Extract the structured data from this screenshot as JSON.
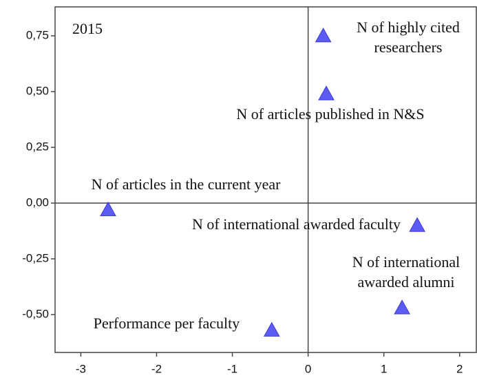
{
  "chart_data": {
    "type": "scatter",
    "title": "2015",
    "x": [
      0.2,
      0.24,
      -2.64,
      1.44,
      1.24,
      -0.48
    ],
    "values": [
      0.75,
      0.49,
      -0.03,
      -0.1,
      -0.47,
      -0.57
    ],
    "labels": [
      [
        "N of highly cited",
        "researchers"
      ],
      [
        "N of articles published in N&S"
      ],
      [
        "N of articles in the current year"
      ],
      [
        "N of international awarded faculty"
      ],
      [
        "N of international",
        "awarded alumni"
      ],
      [
        "Performance per faculty"
      ]
    ],
    "color": "#5c5cf2",
    "xlim": [
      -3.34,
      2.22
    ],
    "xticks": [
      -3,
      -2,
      -1,
      0,
      1,
      2
    ],
    "ylim": [
      -0.67,
      0.88
    ],
    "yticks": [
      {
        "value": 0.75,
        "label": "0,75"
      },
      {
        "value": 0.5,
        "label": "0,50"
      },
      {
        "value": 0.25,
        "label": "0,25"
      },
      {
        "value": 0,
        "label": "0,00"
      },
      {
        "value": -0.25,
        "label": "-0,25"
      },
      {
        "value": -0.5,
        "label": "-0,50"
      }
    ]
  }
}
